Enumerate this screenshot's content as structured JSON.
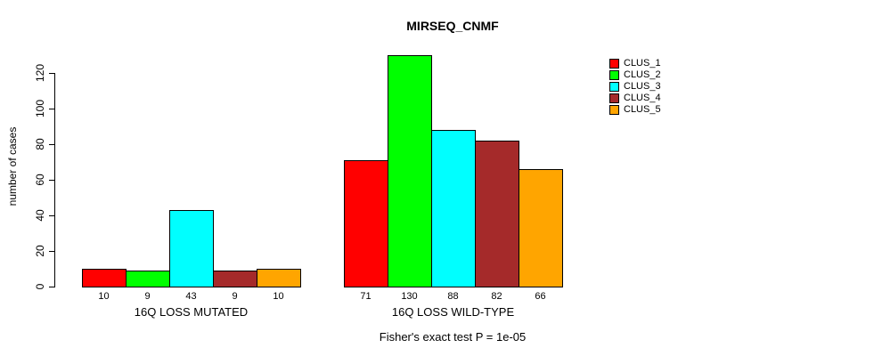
{
  "chart_data": {
    "type": "bar",
    "title": "MIRSEQ_CNMF",
    "xlabel": "",
    "ylabel": "number of cases",
    "ylim": [
      0,
      130
    ],
    "yticks": [
      0,
      20,
      40,
      60,
      80,
      100,
      120
    ],
    "grid": false,
    "legend_position": "right",
    "bar_value_labels_shown": true,
    "categories": [
      "16Q LOSS MUTATED",
      "16Q LOSS WILD-TYPE"
    ],
    "series": [
      {
        "name": "CLUS_1",
        "color": "#ff0000",
        "values": [
          10,
          71
        ]
      },
      {
        "name": "CLUS_2",
        "color": "#00ff00",
        "values": [
          9,
          130
        ]
      },
      {
        "name": "CLUS_3",
        "color": "#00ffff",
        "values": [
          43,
          88
        ]
      },
      {
        "name": "CLUS_4",
        "color": "#a52a2a",
        "values": [
          9,
          82
        ]
      },
      {
        "name": "CLUS_5",
        "color": "#ffa500",
        "values": [
          10,
          66
        ]
      }
    ],
    "annotation": "Fisher's exact test P = 1e-05"
  }
}
